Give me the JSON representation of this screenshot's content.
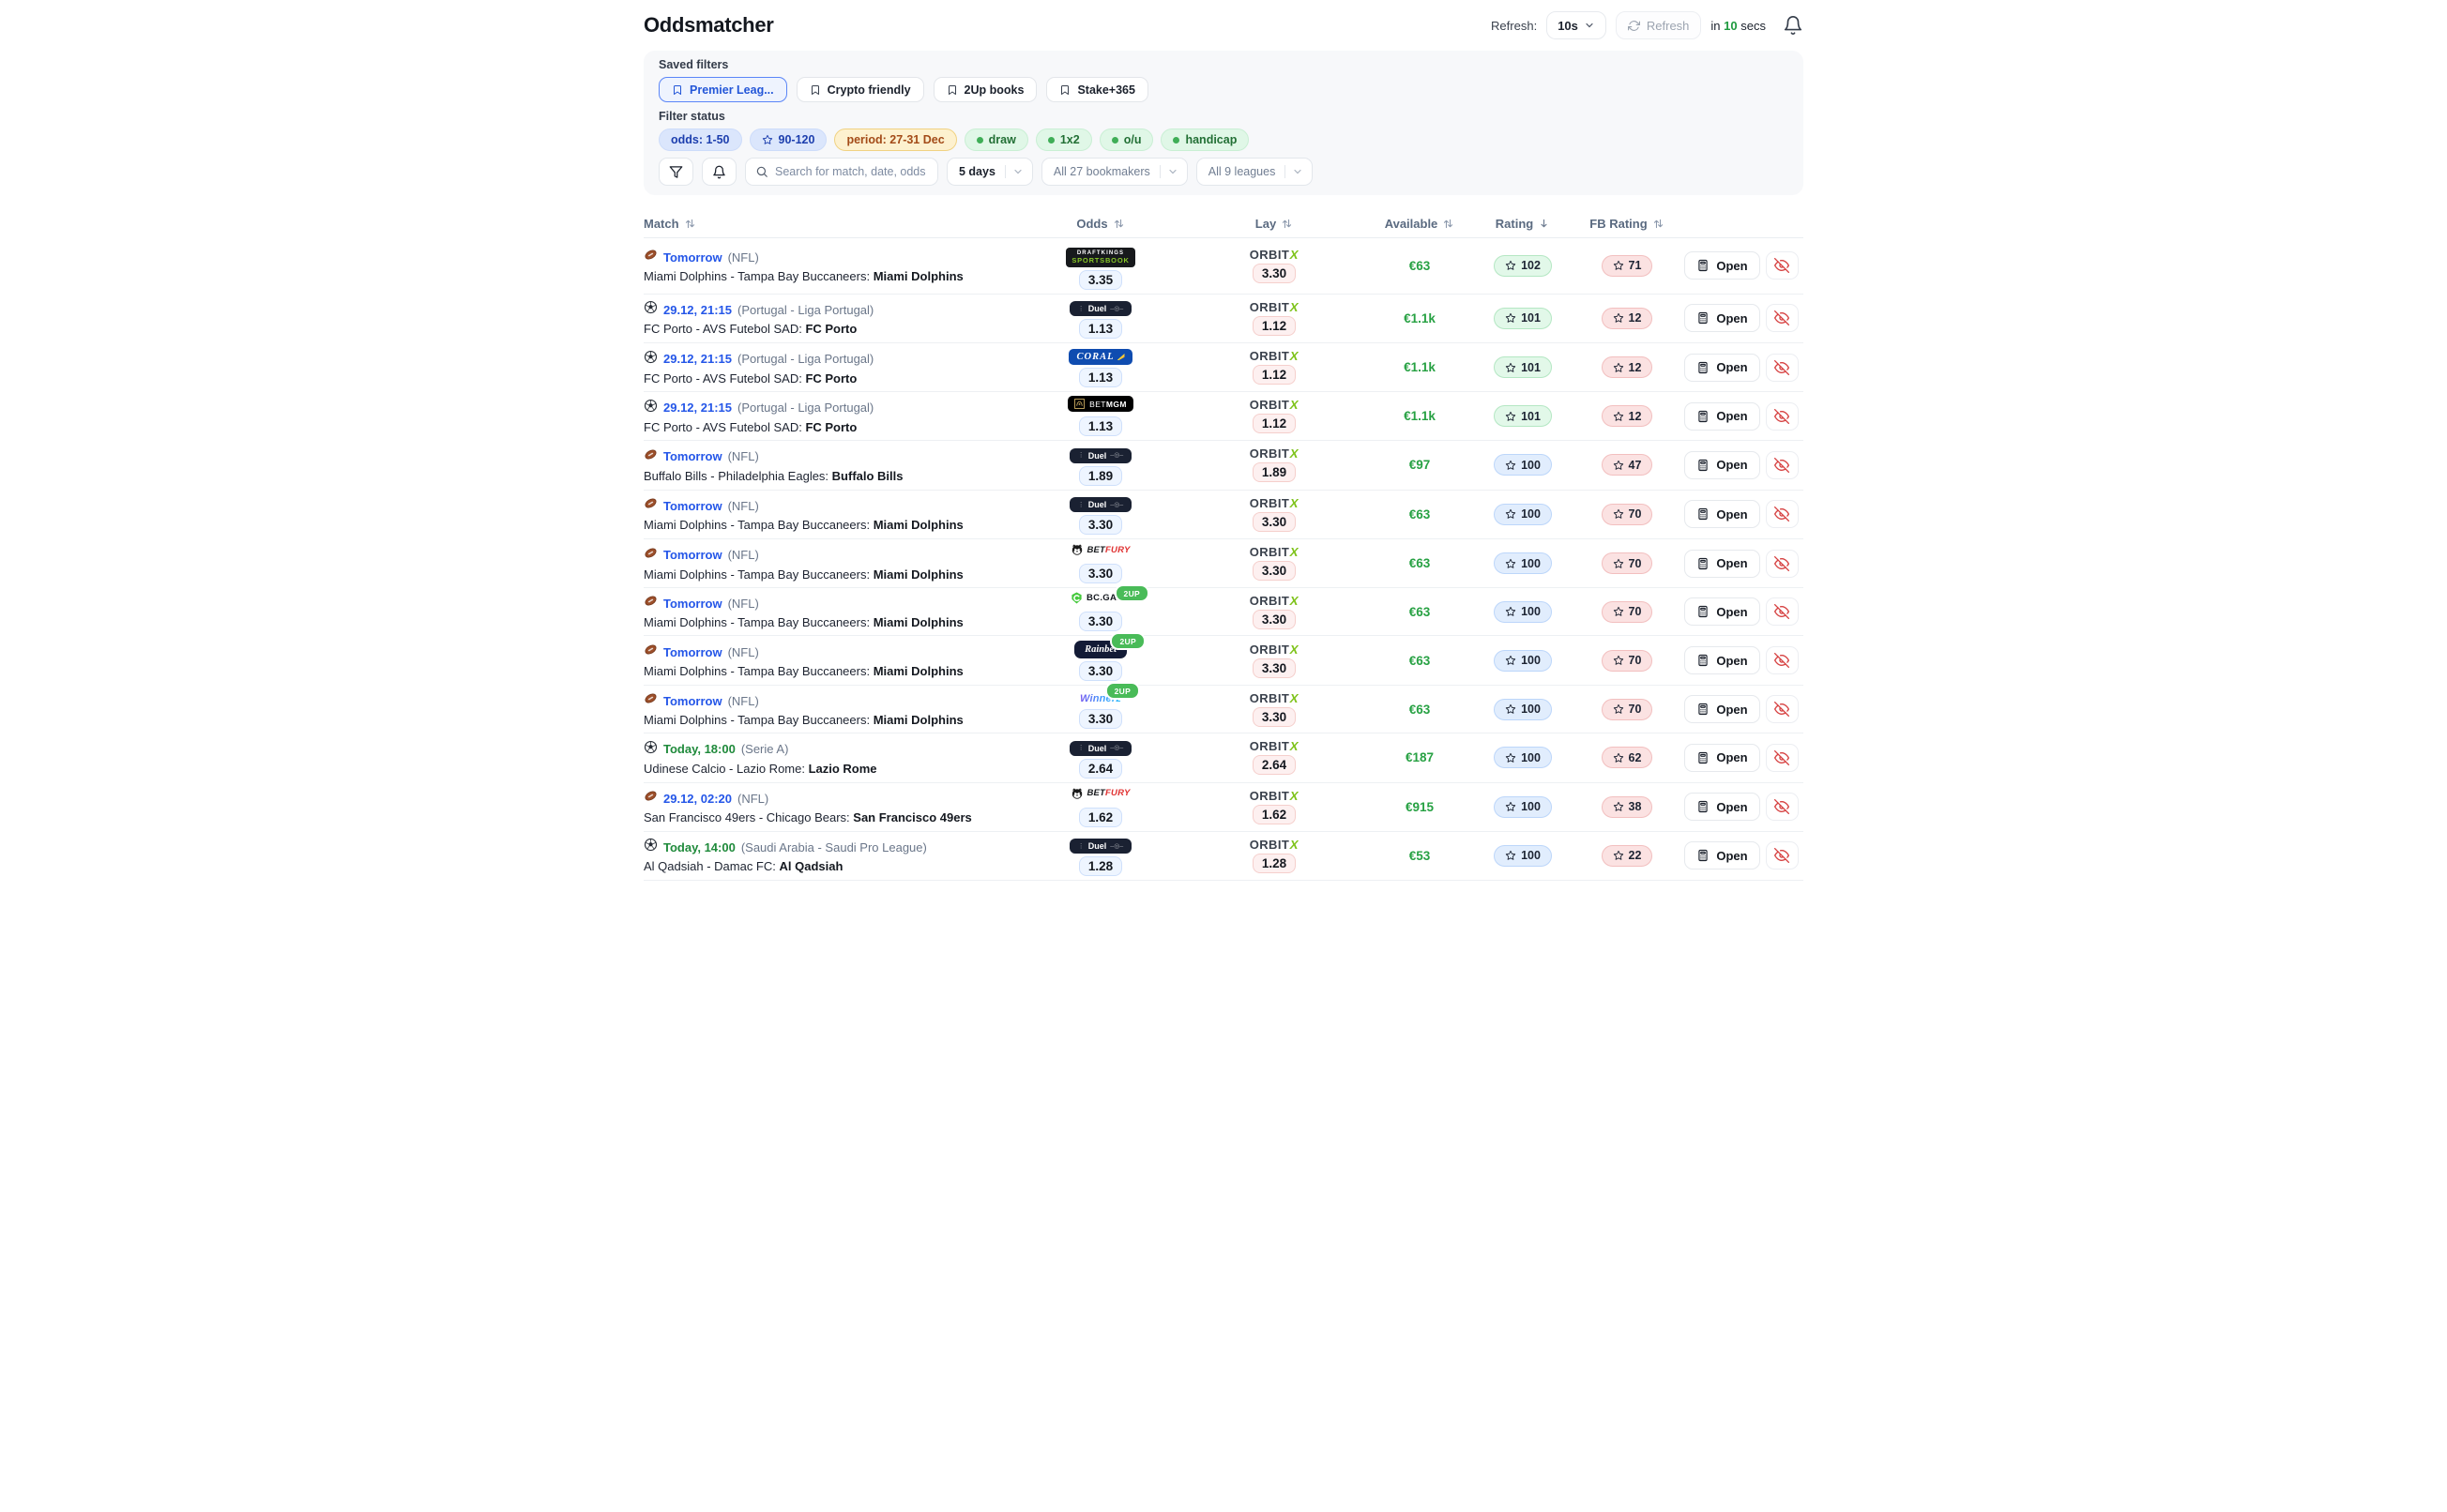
{
  "header": {
    "title": "Oddsmatcher",
    "refresh_label": "Refresh:",
    "interval_value": "10s",
    "refresh_button": "Refresh",
    "countdown_prefix": "in",
    "countdown_value": "10",
    "countdown_suffix": "secs"
  },
  "filters": {
    "saved_label": "Saved filters",
    "saved": [
      {
        "label": "Premier Leag...",
        "active": true
      },
      {
        "label": "Crypto friendly",
        "active": false
      },
      {
        "label": "2Up books",
        "active": false
      },
      {
        "label": "Stake+365",
        "active": false
      }
    ],
    "status_label": "Filter status",
    "status_chips": [
      {
        "label": "odds: 1-50",
        "type": "blue"
      },
      {
        "label": "90-120",
        "type": "blue-star"
      },
      {
        "label": "period: 27-31 Dec",
        "type": "amber"
      },
      {
        "label": "draw",
        "type": "green-dot"
      },
      {
        "label": "1x2",
        "type": "green-dot"
      },
      {
        "label": "o/u",
        "type": "green-dot"
      },
      {
        "label": "handicap",
        "type": "green-dot"
      }
    ],
    "search_placeholder": "Search for match, date, odds",
    "selects": [
      {
        "value": "5 days"
      },
      {
        "value": "All 27 bookmakers"
      },
      {
        "value": "All 9 leagues"
      }
    ]
  },
  "logos": {
    "draftkings": {
      "line1": "DRAFTKINGS",
      "line2": "SPORTSBOOK"
    },
    "duel": {
      "text": "Duel"
    },
    "coral": {
      "text": "CORAL"
    },
    "betmgm": {
      "bet": "BET",
      "mgm": "MGM"
    },
    "betfury": {
      "bet": "BET",
      "fury": "FURY"
    },
    "bcgame": {
      "text": "BC.GAME"
    },
    "rainbet": {
      "text": "Rainbet"
    },
    "winnerz": {
      "text": "Winnerz"
    },
    "orbitx": {
      "orbit": "ORBIT",
      "x": "X"
    },
    "two_up": "2UP"
  },
  "table": {
    "open_label": "Open",
    "columns": [
      {
        "label": "Match",
        "sort": "both"
      },
      {
        "label": "Odds",
        "sort": "both"
      },
      {
        "label": "Lay",
        "sort": "both"
      },
      {
        "label": "Available",
        "sort": "both"
      },
      {
        "label": "Rating",
        "sort": "desc"
      },
      {
        "label": "FB Rating",
        "sort": "both"
      }
    ],
    "rows": [
      {
        "sport": "nfl",
        "datetime": "Tomorrow",
        "datetime_style": "blue",
        "league": "(NFL)",
        "match": "Miami Dolphins - Tampa Bay Buccaneers: ",
        "selection": "Miami Dolphins",
        "bookmaker": "draftkings",
        "two_up": false,
        "odds": "3.35",
        "lay": "3.30",
        "available": "€63",
        "rating": "102",
        "rating_style": "green",
        "fb_rating": "71"
      },
      {
        "sport": "soccer",
        "datetime": "29.12, 21:15",
        "datetime_style": "blue",
        "league": "(Portugal - Liga Portugal)",
        "match": "FC Porto - AVS Futebol SAD: ",
        "selection": "FC Porto",
        "bookmaker": "duel",
        "two_up": false,
        "odds": "1.13",
        "lay": "1.12",
        "available": "€1.1k",
        "rating": "101",
        "rating_style": "green",
        "fb_rating": "12"
      },
      {
        "sport": "soccer",
        "datetime": "29.12, 21:15",
        "datetime_style": "blue",
        "league": "(Portugal - Liga Portugal)",
        "match": "FC Porto - AVS Futebol SAD: ",
        "selection": "FC Porto",
        "bookmaker": "coral",
        "two_up": false,
        "odds": "1.13",
        "lay": "1.12",
        "available": "€1.1k",
        "rating": "101",
        "rating_style": "green",
        "fb_rating": "12"
      },
      {
        "sport": "soccer",
        "datetime": "29.12, 21:15",
        "datetime_style": "blue",
        "league": "(Portugal - Liga Portugal)",
        "match": "FC Porto - AVS Futebol SAD: ",
        "selection": "FC Porto",
        "bookmaker": "betmgm",
        "two_up": false,
        "odds": "1.13",
        "lay": "1.12",
        "available": "€1.1k",
        "rating": "101",
        "rating_style": "green",
        "fb_rating": "12"
      },
      {
        "sport": "nfl",
        "datetime": "Tomorrow",
        "datetime_style": "blue",
        "league": "(NFL)",
        "match": "Buffalo Bills - Philadelphia Eagles: ",
        "selection": "Buffalo Bills",
        "bookmaker": "duel",
        "two_up": false,
        "odds": "1.89",
        "lay": "1.89",
        "available": "€97",
        "rating": "100",
        "rating_style": "blue",
        "fb_rating": "47"
      },
      {
        "sport": "nfl",
        "datetime": "Tomorrow",
        "datetime_style": "blue",
        "league": "(NFL)",
        "match": "Miami Dolphins - Tampa Bay Buccaneers: ",
        "selection": "Miami Dolphins",
        "bookmaker": "duel",
        "two_up": false,
        "odds": "3.30",
        "lay": "3.30",
        "available": "€63",
        "rating": "100",
        "rating_style": "blue",
        "fb_rating": "70"
      },
      {
        "sport": "nfl",
        "datetime": "Tomorrow",
        "datetime_style": "blue",
        "league": "(NFL)",
        "match": "Miami Dolphins - Tampa Bay Buccaneers: ",
        "selection": "Miami Dolphins",
        "bookmaker": "betfury",
        "two_up": false,
        "odds": "3.30",
        "lay": "3.30",
        "available": "€63",
        "rating": "100",
        "rating_style": "blue",
        "fb_rating": "70"
      },
      {
        "sport": "nfl",
        "datetime": "Tomorrow",
        "datetime_style": "blue",
        "league": "(NFL)",
        "match": "Miami Dolphins - Tampa Bay Buccaneers: ",
        "selection": "Miami Dolphins",
        "bookmaker": "bcgame",
        "two_up": true,
        "odds": "3.30",
        "lay": "3.30",
        "available": "€63",
        "rating": "100",
        "rating_style": "blue",
        "fb_rating": "70"
      },
      {
        "sport": "nfl",
        "datetime": "Tomorrow",
        "datetime_style": "blue",
        "league": "(NFL)",
        "match": "Miami Dolphins - Tampa Bay Buccaneers: ",
        "selection": "Miami Dolphins",
        "bookmaker": "rainbet",
        "two_up": true,
        "odds": "3.30",
        "lay": "3.30",
        "available": "€63",
        "rating": "100",
        "rating_style": "blue",
        "fb_rating": "70"
      },
      {
        "sport": "nfl",
        "datetime": "Tomorrow",
        "datetime_style": "blue",
        "league": "(NFL)",
        "match": "Miami Dolphins - Tampa Bay Buccaneers: ",
        "selection": "Miami Dolphins",
        "bookmaker": "winnerz",
        "two_up": true,
        "odds": "3.30",
        "lay": "3.30",
        "available": "€63",
        "rating": "100",
        "rating_style": "blue",
        "fb_rating": "70"
      },
      {
        "sport": "soccer",
        "datetime": "Today, 18:00",
        "datetime_style": "green",
        "league": "(Serie A)",
        "match": "Udinese Calcio - Lazio Rome: ",
        "selection": "Lazio Rome",
        "bookmaker": "duel",
        "two_up": false,
        "odds": "2.64",
        "lay": "2.64",
        "available": "€187",
        "rating": "100",
        "rating_style": "blue",
        "fb_rating": "62"
      },
      {
        "sport": "nfl",
        "datetime": "29.12, 02:20",
        "datetime_style": "blue",
        "league": "(NFL)",
        "match": "San Francisco 49ers - Chicago Bears: ",
        "selection": "San Francisco 49ers",
        "bookmaker": "betfury",
        "two_up": false,
        "odds": "1.62",
        "lay": "1.62",
        "available": "€915",
        "rating": "100",
        "rating_style": "blue",
        "fb_rating": "38"
      },
      {
        "sport": "soccer",
        "datetime": "Today, 14:00",
        "datetime_style": "green",
        "league": "(Saudi Arabia - Saudi Pro League)",
        "match": "Al Qadsiah - Damac FC: ",
        "selection": "Al Qadsiah",
        "bookmaker": "duel",
        "two_up": false,
        "odds": "1.28",
        "lay": "1.28",
        "available": "€53",
        "rating": "100",
        "rating_style": "blue",
        "fb_rating": "22"
      }
    ]
  }
}
